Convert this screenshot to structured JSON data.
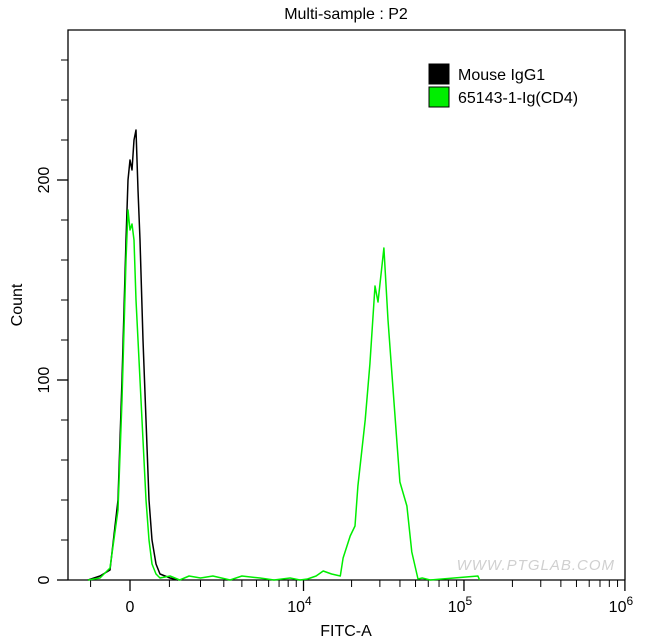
{
  "chart_data": {
    "type": "line",
    "title": "Multi-sample : P2",
    "xlabel": "FITC-A",
    "ylabel": "Count",
    "x_scale": "biexponential",
    "xlim": [
      -1700,
      1000000
    ],
    "ylim": [
      0,
      275
    ],
    "x_ticks": [
      {
        "value": 0,
        "label": "0",
        "exp": ""
      },
      {
        "value": 10000,
        "label": "10",
        "exp": "4"
      },
      {
        "value": 100000,
        "label": "10",
        "exp": "5"
      },
      {
        "value": 1000000,
        "label": "10",
        "exp": "6"
      }
    ],
    "x_minor_ticks": [
      -1000,
      1000,
      2000,
      3000,
      4000,
      5000,
      6000,
      7000,
      8000,
      9000,
      20000,
      30000,
      40000,
      50000,
      60000,
      70000,
      80000,
      90000,
      200000,
      300000,
      400000,
      500000,
      600000,
      700000,
      800000,
      900000
    ],
    "y_ticks": [
      0,
      100,
      200
    ],
    "y_minor_ticks": [
      20,
      40,
      60,
      80,
      120,
      140,
      160,
      180,
      220,
      240,
      260
    ],
    "grid": false,
    "legend_position": "top-right",
    "series": [
      {
        "name": "Mouse IgG1",
        "color": "#000000",
        "points": [
          [
            -1074,
            0
          ],
          [
            -744,
            2
          ],
          [
            -488,
            5
          ],
          [
            -291,
            40
          ],
          [
            -193,
            100
          ],
          [
            -96,
            170
          ],
          [
            -48,
            200
          ],
          [
            0,
            210
          ],
          [
            48,
            205
          ],
          [
            96,
            220
          ],
          [
            145,
            225
          ],
          [
            193,
            195
          ],
          [
            241,
            170
          ],
          [
            315,
            120
          ],
          [
            388,
            80
          ],
          [
            463,
            40
          ],
          [
            539,
            20
          ],
          [
            641,
            8
          ],
          [
            744,
            3
          ],
          [
            1017,
            1
          ],
          [
            1249,
            0
          ]
        ]
      },
      {
        "name": "65143-1-Ig(CD4)",
        "color": "#00ee00",
        "points": [
          [
            -1074,
            0
          ],
          [
            -744,
            1
          ],
          [
            -488,
            6
          ],
          [
            -291,
            35
          ],
          [
            -193,
            90
          ],
          [
            -96,
            160
          ],
          [
            -48,
            185
          ],
          [
            0,
            175
          ],
          [
            48,
            178
          ],
          [
            96,
            170
          ],
          [
            145,
            140
          ],
          [
            193,
            120
          ],
          [
            241,
            100
          ],
          [
            315,
            70
          ],
          [
            388,
            40
          ],
          [
            463,
            20
          ],
          [
            539,
            8
          ],
          [
            641,
            3
          ],
          [
            744,
            1
          ],
          [
            1017,
            2
          ],
          [
            1300,
            0
          ],
          [
            1600,
            2
          ],
          [
            2000,
            1
          ],
          [
            2500,
            2
          ],
          [
            3320,
            0
          ],
          [
            4000,
            2
          ],
          [
            5270,
            1
          ],
          [
            6500,
            0
          ],
          [
            8230,
            1
          ],
          [
            9500,
            0
          ],
          [
            10590,
            0.5
          ],
          [
            12000,
            2
          ],
          [
            13300,
            4.5
          ],
          [
            15000,
            3
          ],
          [
            17000,
            2
          ],
          [
            17700,
            11
          ],
          [
            19600,
            22
          ],
          [
            21000,
            27
          ],
          [
            21900,
            47
          ],
          [
            24300,
            80
          ],
          [
            26000,
            108
          ],
          [
            28000,
            147
          ],
          [
            29200,
            139
          ],
          [
            31800,
            166
          ],
          [
            33700,
            130
          ],
          [
            38300,
            69
          ],
          [
            40000,
            49
          ],
          [
            44200,
            37
          ],
          [
            47400,
            14
          ],
          [
            51800,
            0.5
          ],
          [
            55000,
            1
          ],
          [
            61600,
            0
          ],
          [
            122000,
            2
          ],
          [
            125000,
            0
          ]
        ]
      }
    ]
  },
  "watermark": "WWW.PTGLAB.COM"
}
